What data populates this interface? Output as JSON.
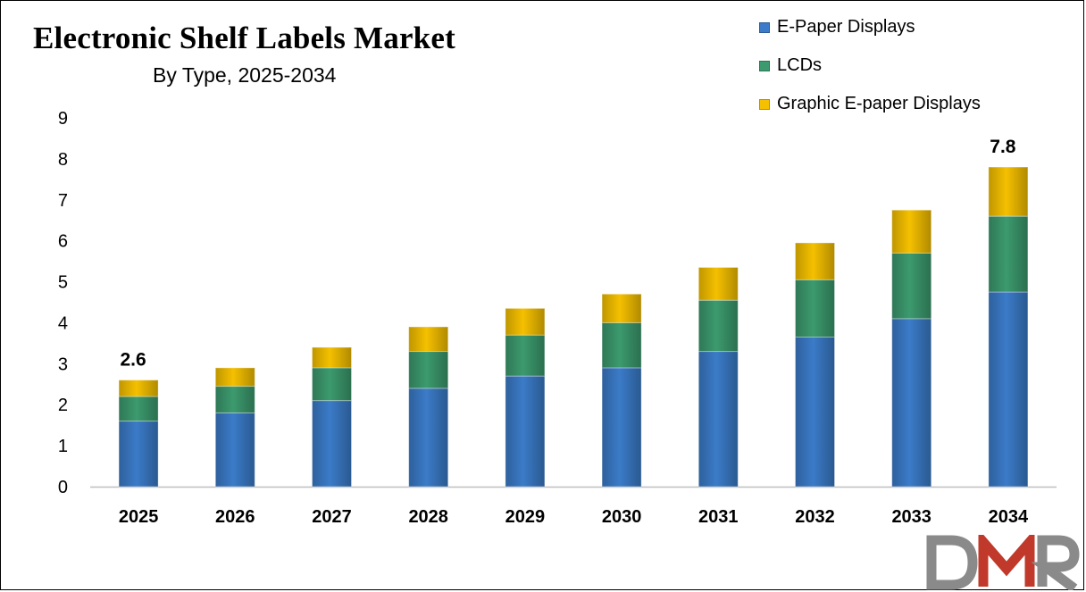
{
  "chart_data": {
    "type": "bar",
    "stacked": true,
    "title": "Electronic Shelf Labels Market",
    "subtitle": "By Type, 2025-2034",
    "categories": [
      "2025",
      "2026",
      "2027",
      "2028",
      "2029",
      "2030",
      "2031",
      "2032",
      "2033",
      "2034"
    ],
    "series": [
      {
        "name": "E-Paper Displays",
        "color": "#3B7BC8",
        "values": [
          1.6,
          1.8,
          2.1,
          2.4,
          2.7,
          2.9,
          3.3,
          3.65,
          4.1,
          4.75
        ]
      },
      {
        "name": "LCDs",
        "color": "#3C9A6E",
        "values": [
          0.6,
          0.65,
          0.8,
          0.9,
          1.0,
          1.1,
          1.25,
          1.4,
          1.6,
          1.85
        ]
      },
      {
        "name": "Graphic E-paper Displays",
        "color": "#F5C000",
        "values": [
          0.4,
          0.45,
          0.5,
          0.6,
          0.65,
          0.7,
          0.8,
          0.9,
          1.05,
          1.2
        ]
      }
    ],
    "totals_labels": [
      {
        "category": "2025",
        "text": "2.6"
      },
      {
        "category": "2034",
        "text": "7.8"
      }
    ],
    "ylim": [
      0,
      9
    ],
    "yticks": [
      "0",
      "1",
      "2",
      "3",
      "4",
      "5",
      "6",
      "7",
      "8",
      "9"
    ],
    "xlabel": "",
    "ylabel": "",
    "grid": false,
    "legend_position": "top-right"
  },
  "logo": {
    "text": "DMR",
    "colors": [
      "#8A8A8A",
      "#C0392B"
    ]
  }
}
